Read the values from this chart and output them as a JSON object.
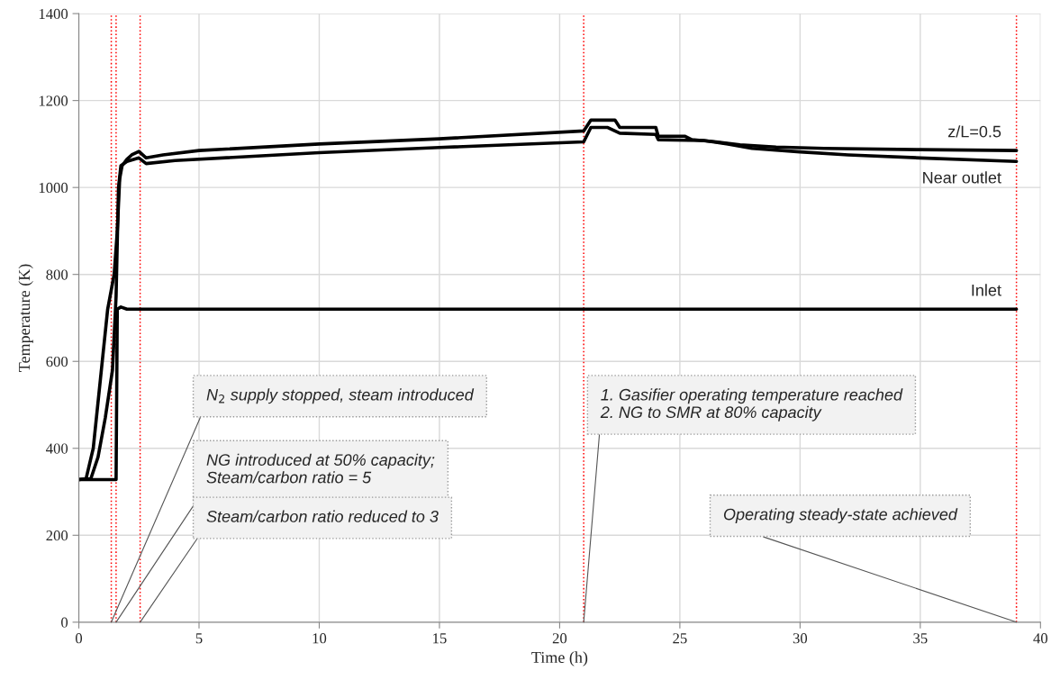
{
  "chart_data": {
    "type": "line",
    "xlabel": "Time (h)",
    "ylabel": "Temperature (K)",
    "xlim": [
      0,
      40
    ],
    "ylim": [
      0,
      1400
    ],
    "xticks": [
      0,
      5,
      10,
      15,
      20,
      25,
      30,
      35,
      40
    ],
    "yticks": [
      0,
      200,
      400,
      600,
      800,
      1000,
      1200,
      1400
    ],
    "grid": true,
    "line_style": "solid",
    "marker": "none",
    "series": [
      {
        "name": "z/L=0.5",
        "color": "#000000",
        "x": [
          0,
          0.3,
          0.6,
          0.9,
          1.2,
          1.47,
          1.6,
          1.7,
          1.8,
          2.0,
          2.2,
          2.5,
          2.8,
          3.5,
          5,
          10,
          15,
          21,
          21.3,
          22.3,
          22.5,
          24,
          24.1,
          25.2,
          25.5,
          26.5,
          27.5,
          29,
          31,
          35,
          39
        ],
        "values": [
          328,
          330,
          400,
          560,
          720,
          800,
          900,
          1020,
          1050,
          1065,
          1075,
          1083,
          1068,
          1075,
          1085,
          1100,
          1112,
          1130,
          1155,
          1155,
          1138,
          1138,
          1118,
          1118,
          1110,
          1105,
          1098,
          1093,
          1090,
          1087,
          1085
        ]
      },
      {
        "name": "Near outlet",
        "color": "#000000",
        "x": [
          0,
          0.5,
          0.8,
          1.1,
          1.4,
          1.55,
          1.65,
          1.75,
          2.0,
          2.5,
          2.8,
          4,
          10,
          15,
          21,
          21.3,
          22,
          22.5,
          24,
          24.1,
          26,
          27,
          28,
          30,
          32,
          35,
          39
        ],
        "values": [
          328,
          330,
          380,
          470,
          580,
          750,
          1000,
          1050,
          1060,
          1068,
          1055,
          1062,
          1080,
          1092,
          1105,
          1138,
          1138,
          1125,
          1122,
          1110,
          1108,
          1100,
          1090,
          1082,
          1075,
          1068,
          1060
        ]
      },
      {
        "name": "Inlet",
        "color": "#000000",
        "x": [
          0,
          1.55,
          1.6,
          1.75,
          2.0,
          39
        ],
        "values": [
          328,
          328,
          720,
          725,
          720,
          720
        ]
      }
    ],
    "ref_lines": [
      {
        "axis": "x",
        "value": 1.35,
        "color": "#ff0000",
        "line_style": "dotted"
      },
      {
        "axis": "x",
        "value": 1.55,
        "color": "#ff0000",
        "line_style": "dotted"
      },
      {
        "axis": "x",
        "value": 2.55,
        "color": "#ff0000",
        "line_style": "dotted"
      },
      {
        "axis": "x",
        "value": 21,
        "color": "#ff0000",
        "line_style": "dotted"
      },
      {
        "axis": "x",
        "value": 39,
        "color": "#ff0000",
        "line_style": "dotted"
      }
    ],
    "annotations": [
      {
        "text": "N$_{2}$ supply stopped, steam introduced",
        "x": 1.35,
        "y": 0
      },
      {
        "text": "NG introduced at 50% capacity;\nSteam/carbon ratio = 5",
        "x": 1.55,
        "y": 0
      },
      {
        "text": "Steam/carbon ratio reduced to 3",
        "x": 2.55,
        "y": 0
      },
      {
        "text": "1. Gasifier operating temperature reached\n2. NG to SMR at 80% capacity",
        "x": 21,
        "y": 0
      },
      {
        "text": "Operating steady-state achieved",
        "x": 39,
        "y": 0
      }
    ]
  }
}
